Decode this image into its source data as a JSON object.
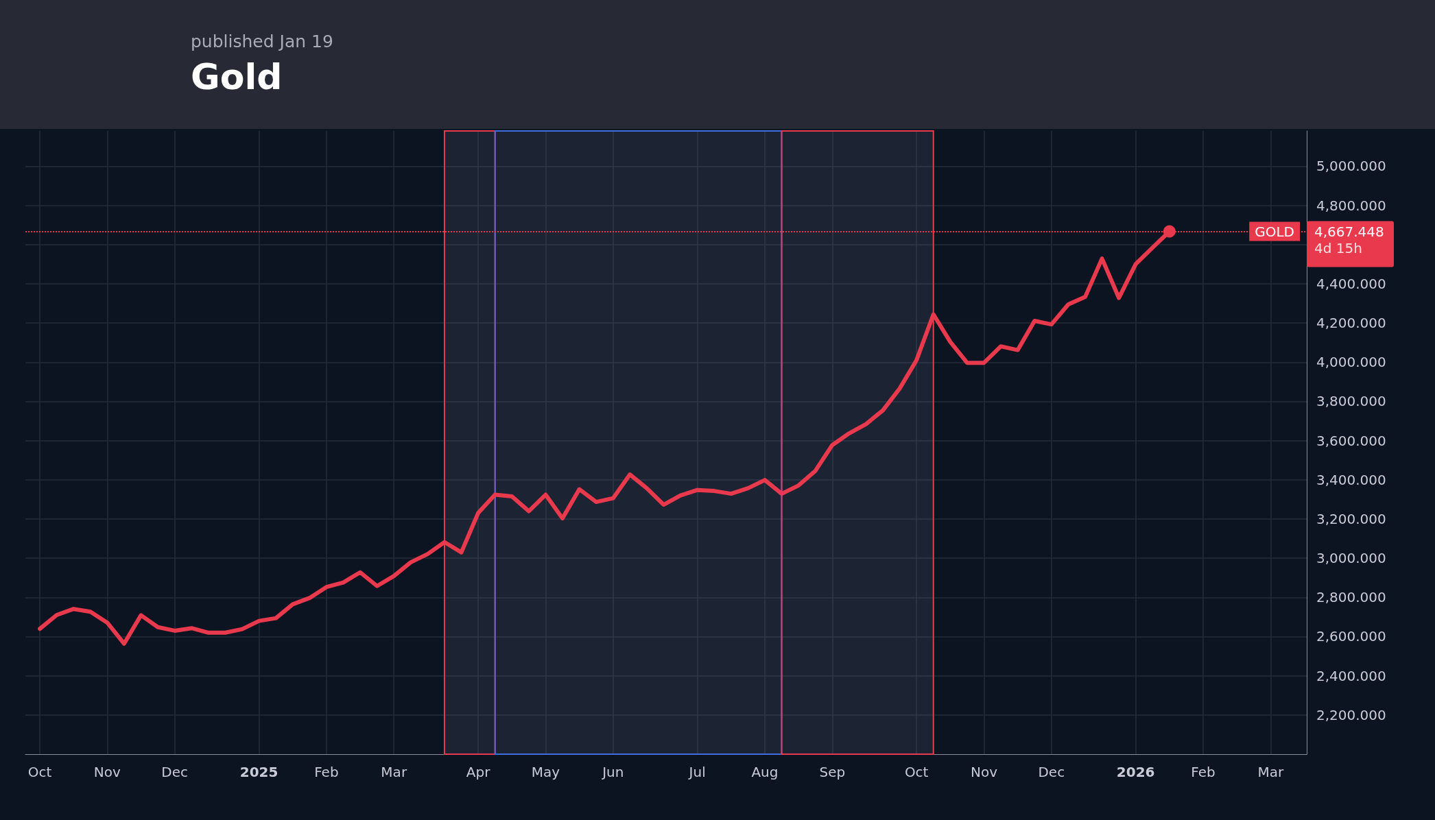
{
  "chart_data": {
    "type": "line",
    "title": "Gold",
    "subtitle": "published Jan 19",
    "x": [
      "2024-10-07",
      "2024-10-14",
      "2024-10-21",
      "2024-10-28",
      "2024-11-04",
      "2024-11-11",
      "2024-11-18",
      "2024-11-25",
      "2024-12-02",
      "2024-12-09",
      "2024-12-16",
      "2024-12-23",
      "2024-12-30",
      "2025-01-06",
      "2025-01-13",
      "2025-01-20",
      "2025-01-27",
      "2025-02-03",
      "2025-02-10",
      "2025-02-17",
      "2025-02-24",
      "2025-03-03",
      "2025-03-10",
      "2025-03-17",
      "2025-03-24",
      "2025-03-31",
      "2025-04-07",
      "2025-04-14",
      "2025-04-21",
      "2025-04-28",
      "2025-05-05",
      "2025-05-12",
      "2025-05-19",
      "2025-05-26",
      "2025-06-02",
      "2025-06-09",
      "2025-06-16",
      "2025-06-23",
      "2025-06-30",
      "2025-07-07",
      "2025-07-14",
      "2025-07-21",
      "2025-07-28",
      "2025-08-04",
      "2025-08-11",
      "2025-08-18",
      "2025-08-25",
      "2025-09-01",
      "2025-09-08",
      "2025-09-15",
      "2025-09-22",
      "2025-09-29",
      "2025-10-06",
      "2025-10-13",
      "2025-10-20",
      "2025-10-27",
      "2025-11-03",
      "2025-11-10",
      "2025-11-17",
      "2025-11-24",
      "2025-12-01",
      "2025-12-08",
      "2025-12-15",
      "2025-12-22",
      "2025-12-29",
      "2026-01-05",
      "2026-01-12",
      "2026-01-19"
    ],
    "series": [
      {
        "color": "#e8394d",
        "values": [
          2640,
          2710,
          2741,
          2727,
          2671,
          2564,
          2709,
          2648,
          2630,
          2643,
          2620,
          2620,
          2638,
          2680,
          2694,
          2765,
          2797,
          2853,
          2876,
          2928,
          2858,
          2909,
          2979,
          3021,
          3082,
          3030,
          3231,
          3324,
          3315,
          3240,
          3324,
          3203,
          3352,
          3287,
          3306,
          3427,
          3357,
          3273,
          3320,
          3348,
          3343,
          3329,
          3357,
          3399,
          3329,
          3371,
          3446,
          3577,
          3637,
          3684,
          3754,
          3866,
          4011,
          4244,
          4104,
          3997,
          3997,
          4081,
          4062,
          4211,
          4193,
          4295,
          4333,
          4529,
          4328,
          4501,
          4585,
          4667.448
        ]
      }
    ],
    "xlim": [
      "2024-10-01",
      "2026-03-17"
    ],
    "xticks": [
      {
        "value": "2024-10-07",
        "label": "Oct"
      },
      {
        "value": "2024-11-04",
        "label": "Nov"
      },
      {
        "value": "2024-12-02",
        "label": "Dec"
      },
      {
        "value": "2025-01-06",
        "label": "2025"
      },
      {
        "value": "2025-02-03",
        "label": "Feb"
      },
      {
        "value": "2025-03-03",
        "label": "Mar"
      },
      {
        "value": "2025-04-07",
        "label": "Apr"
      },
      {
        "value": "2025-05-05",
        "label": "May"
      },
      {
        "value": "2025-06-02",
        "label": "Jun"
      },
      {
        "value": "2025-07-07",
        "label": "Jul"
      },
      {
        "value": "2025-08-04",
        "label": "Aug"
      },
      {
        "value": "2025-09-01",
        "label": "Sep"
      },
      {
        "value": "2025-10-06",
        "label": "Oct"
      },
      {
        "value": "2025-11-03",
        "label": "Nov"
      },
      {
        "value": "2025-12-01",
        "label": "Dec"
      },
      {
        "value": "2026-01-05",
        "label": "2026"
      },
      {
        "value": "2026-02-02",
        "label": "Feb"
      },
      {
        "value": "2026-03-02",
        "label": "Mar"
      }
    ],
    "ylim": [
      2000,
      5180
    ],
    "yticks": [
      {
        "value": 2200,
        "label": "2,200.000"
      },
      {
        "value": 2400,
        "label": "2,400.000"
      },
      {
        "value": 2600,
        "label": "2,600.000"
      },
      {
        "value": 2800,
        "label": "2,800.000"
      },
      {
        "value": 3000,
        "label": "3,000.000"
      },
      {
        "value": 3200,
        "label": "3,200.000"
      },
      {
        "value": 3400,
        "label": "3,400.000"
      },
      {
        "value": 3600,
        "label": "3,600.000"
      },
      {
        "value": 3800,
        "label": "3,800.000"
      },
      {
        "value": 4000,
        "label": "4,000.000"
      },
      {
        "value": 4200,
        "label": "4,200.000"
      },
      {
        "value": 4400,
        "label": "4,400.000"
      },
      {
        "value": 4600,
        "label": null
      },
      {
        "value": 4800,
        "label": "4,800.000"
      },
      {
        "value": 5000,
        "label": "5,000.000"
      }
    ],
    "grid": true,
    "ref_lines": [
      {
        "axis": "y",
        "value": 4667.448,
        "label": "GOLD",
        "color": "#e8394d",
        "line_style": "dotted"
      }
    ],
    "bands": [
      {
        "axis": "x",
        "from": "2025-03-24",
        "to": "2025-04-14",
        "color": "#e8394d"
      },
      {
        "axis": "x",
        "from": "2025-04-14",
        "to": "2025-08-11",
        "color": "#3d6fe0"
      },
      {
        "axis": "x",
        "from": "2025-08-11",
        "to": "2025-10-13",
        "color": "#e8394d"
      }
    ],
    "annotations": [
      "4,667.448",
      "4d 15h"
    ]
  }
}
